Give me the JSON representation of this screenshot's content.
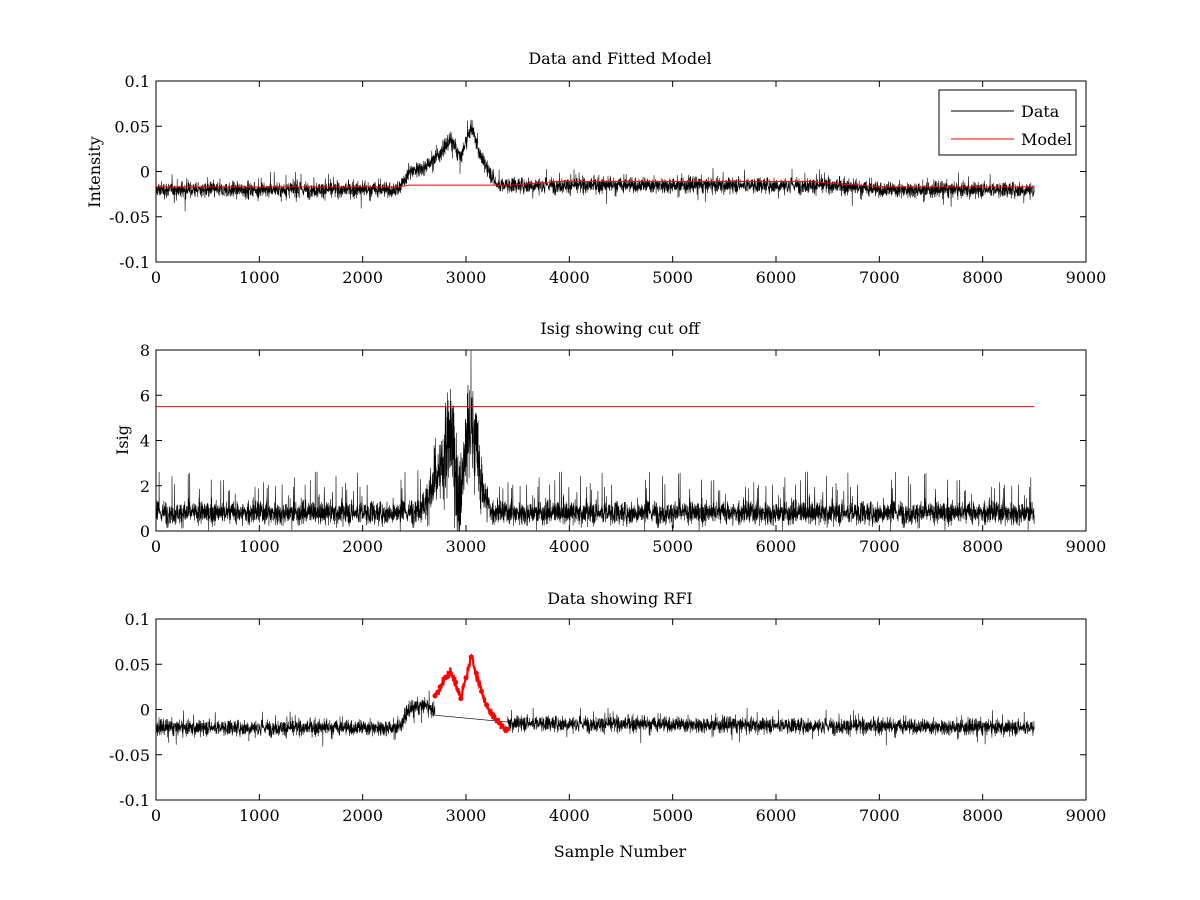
{
  "chart_data": [
    {
      "type": "line",
      "title": "Data and Fitted Model",
      "xlabel": "",
      "ylabel": "Intensity",
      "xlim": [
        0,
        9000
      ],
      "ylim": [
        -0.1,
        0.1
      ],
      "xticks": [
        0,
        1000,
        2000,
        3000,
        4000,
        5000,
        6000,
        7000,
        8000,
        9000
      ],
      "xticklabels": [
        "0",
        "1000",
        "2000",
        "3000",
        "4000",
        "5000",
        "6000",
        "7000",
        "8000",
        "9000"
      ],
      "yticks": [
        -0.1,
        -0.05,
        0,
        0.05,
        0.1
      ],
      "yticklabels": [
        "-0.1",
        "-0.05",
        "0",
        "0.05",
        "0.1"
      ],
      "grid": false,
      "legend": "top-right",
      "series": [
        {
          "name": "Data",
          "color": "#000000",
          "style": "noise",
          "x": [
            0,
            2350,
            2450,
            2600,
            2750,
            2850,
            2950,
            3050,
            3150,
            3300,
            3500,
            6500,
            7000,
            8500
          ],
          "values": [
            -0.02,
            -0.02,
            0.0,
            0.005,
            0.02,
            0.035,
            0.015,
            0.05,
            0.015,
            -0.015,
            -0.015,
            -0.015,
            -0.02,
            -0.02
          ],
          "noise": 0.011
        },
        {
          "name": "Model",
          "color": "#ff0000",
          "style": "line",
          "x": [
            0,
            2350,
            2450,
            3450,
            3900,
            6300,
            6900,
            7100,
            8500
          ],
          "values": [
            -0.017,
            -0.017,
            -0.015,
            -0.015,
            -0.011,
            -0.011,
            -0.016,
            -0.017,
            -0.017
          ]
        }
      ]
    },
    {
      "type": "line",
      "title": "Isig showing cut off",
      "xlabel": "",
      "ylabel": "Isig",
      "xlim": [
        0,
        9000
      ],
      "ylim": [
        0,
        8
      ],
      "xticks": [
        0,
        1000,
        2000,
        3000,
        4000,
        5000,
        6000,
        7000,
        8000,
        9000
      ],
      "xticklabels": [
        "0",
        "1000",
        "2000",
        "3000",
        "4000",
        "5000",
        "6000",
        "7000",
        "8000",
        "9000"
      ],
      "yticks": [
        0,
        2,
        4,
        6,
        8
      ],
      "yticklabels": [
        "0",
        "2",
        "4",
        "6",
        "8"
      ],
      "grid": false,
      "series": [
        {
          "color": "#000000",
          "style": "isig",
          "x": [
            0,
            2450,
            2600,
            2750,
            2850,
            2950,
            3050,
            3150,
            3250,
            8500
          ],
          "values": [
            0.8,
            0.8,
            1.2,
            2.5,
            4.2,
            2.0,
            5.0,
            2.0,
            0.8,
            0.8
          ]
        },
        {
          "color": "#ff0000",
          "style": "line",
          "x": [
            0,
            8500
          ],
          "values": [
            5.5,
            5.5
          ]
        }
      ]
    },
    {
      "type": "line",
      "title": "Data showing RFI",
      "xlabel": "Sample Number",
      "ylabel": "",
      "xlim": [
        0,
        9000
      ],
      "ylim": [
        -0.1,
        0.1
      ],
      "xticks": [
        0,
        1000,
        2000,
        3000,
        4000,
        5000,
        6000,
        7000,
        8000,
        9000
      ],
      "xticklabels": [
        "0",
        "1000",
        "2000",
        "3000",
        "4000",
        "5000",
        "6000",
        "7000",
        "8000",
        "9000"
      ],
      "yticks": [
        -0.1,
        -0.05,
        0,
        0.05,
        0.1
      ],
      "yticklabels": [
        "-0.1",
        "-0.05",
        "0",
        "0.05",
        "0.1"
      ],
      "grid": false,
      "series": [
        {
          "color": "#000000",
          "style": "noise",
          "x": [
            0,
            2350,
            2450,
            2600,
            2750,
            3400,
            3500,
            8500
          ],
          "values": [
            -0.02,
            -0.02,
            0.0,
            0.005,
            -0.005,
            -0.015,
            -0.015,
            -0.02
          ],
          "noise": 0.011,
          "gap": [
            2700,
            3400
          ]
        },
        {
          "color": "#ff0000",
          "style": "markers",
          "x": [
            2700,
            2750,
            2800,
            2850,
            2900,
            2950,
            3000,
            3050,
            3100,
            3150,
            3200,
            3250,
            3300,
            3350,
            3400
          ],
          "values": [
            0.015,
            0.025,
            0.035,
            0.04,
            0.03,
            0.012,
            0.035,
            0.058,
            0.04,
            0.02,
            0.005,
            -0.005,
            -0.012,
            -0.018,
            -0.022
          ]
        }
      ]
    }
  ]
}
